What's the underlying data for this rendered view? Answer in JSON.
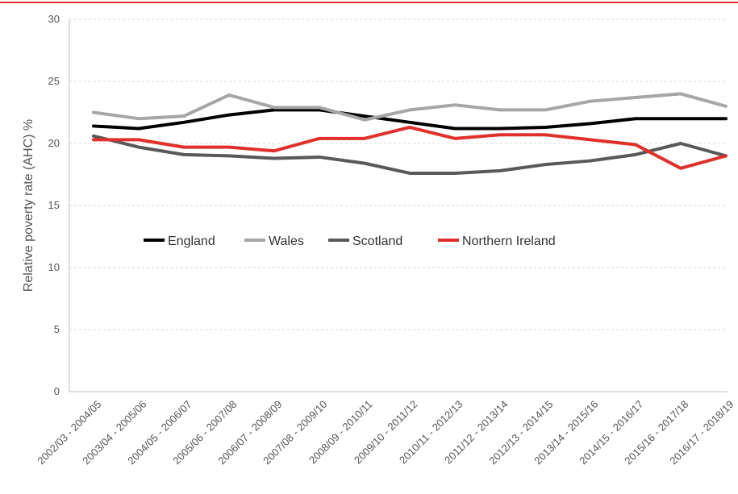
{
  "chart_data": {
    "type": "line",
    "ylabel": "Relative poverty rate (AHC) %",
    "xlabel": "",
    "ylim": [
      0,
      30
    ],
    "yticks": [
      0,
      5,
      10,
      15,
      20,
      25,
      30
    ],
    "grid": true,
    "legend_position": "center",
    "categories": [
      "2002/03 - 2004/05",
      "2003/04 - 2005/06",
      "2004/05 - 2006/07",
      "2005/06 - 2007/08",
      "2006/07 - 2008/09",
      "2007/08 - 2009/10",
      "2008/09 - 2010/11",
      "2009/10 - 2011/12",
      "2010/11 - 2012/13",
      "2011/12 - 2013/14",
      "2012/13 - 2014/15",
      "2013/14 - 2015/16",
      "2014/15 - 2016/17",
      "2015/16 - 2017/18",
      "2016/17 - 2018/19"
    ],
    "series": [
      {
        "name": "England",
        "color": "#000000",
        "values": [
          21.4,
          21.2,
          21.7,
          22.3,
          22.7,
          22.7,
          22.2,
          21.7,
          21.2,
          21.2,
          21.3,
          21.6,
          22.0,
          22.0,
          22.0
        ]
      },
      {
        "name": "Wales",
        "color": "#a6a6a6",
        "values": [
          22.5,
          22.0,
          22.2,
          23.9,
          22.9,
          22.9,
          21.9,
          22.7,
          23.1,
          22.7,
          22.7,
          23.4,
          23.7,
          24.0,
          23.0
        ]
      },
      {
        "name": "Scotland",
        "color": "#595959",
        "values": [
          20.6,
          19.7,
          19.1,
          19.0,
          18.8,
          18.9,
          18.4,
          17.6,
          17.6,
          17.8,
          18.3,
          18.6,
          19.1,
          20.0,
          19.0
        ]
      },
      {
        "name": "Northern Ireland",
        "color": "#e0302c",
        "values": [
          20.3,
          20.3,
          19.7,
          19.7,
          19.4,
          20.4,
          20.4,
          21.3,
          20.4,
          20.7,
          20.7,
          20.3,
          19.9,
          18.0,
          19.0
        ]
      }
    ]
  },
  "accent": {
    "top_rule_color": "#e0302c"
  }
}
